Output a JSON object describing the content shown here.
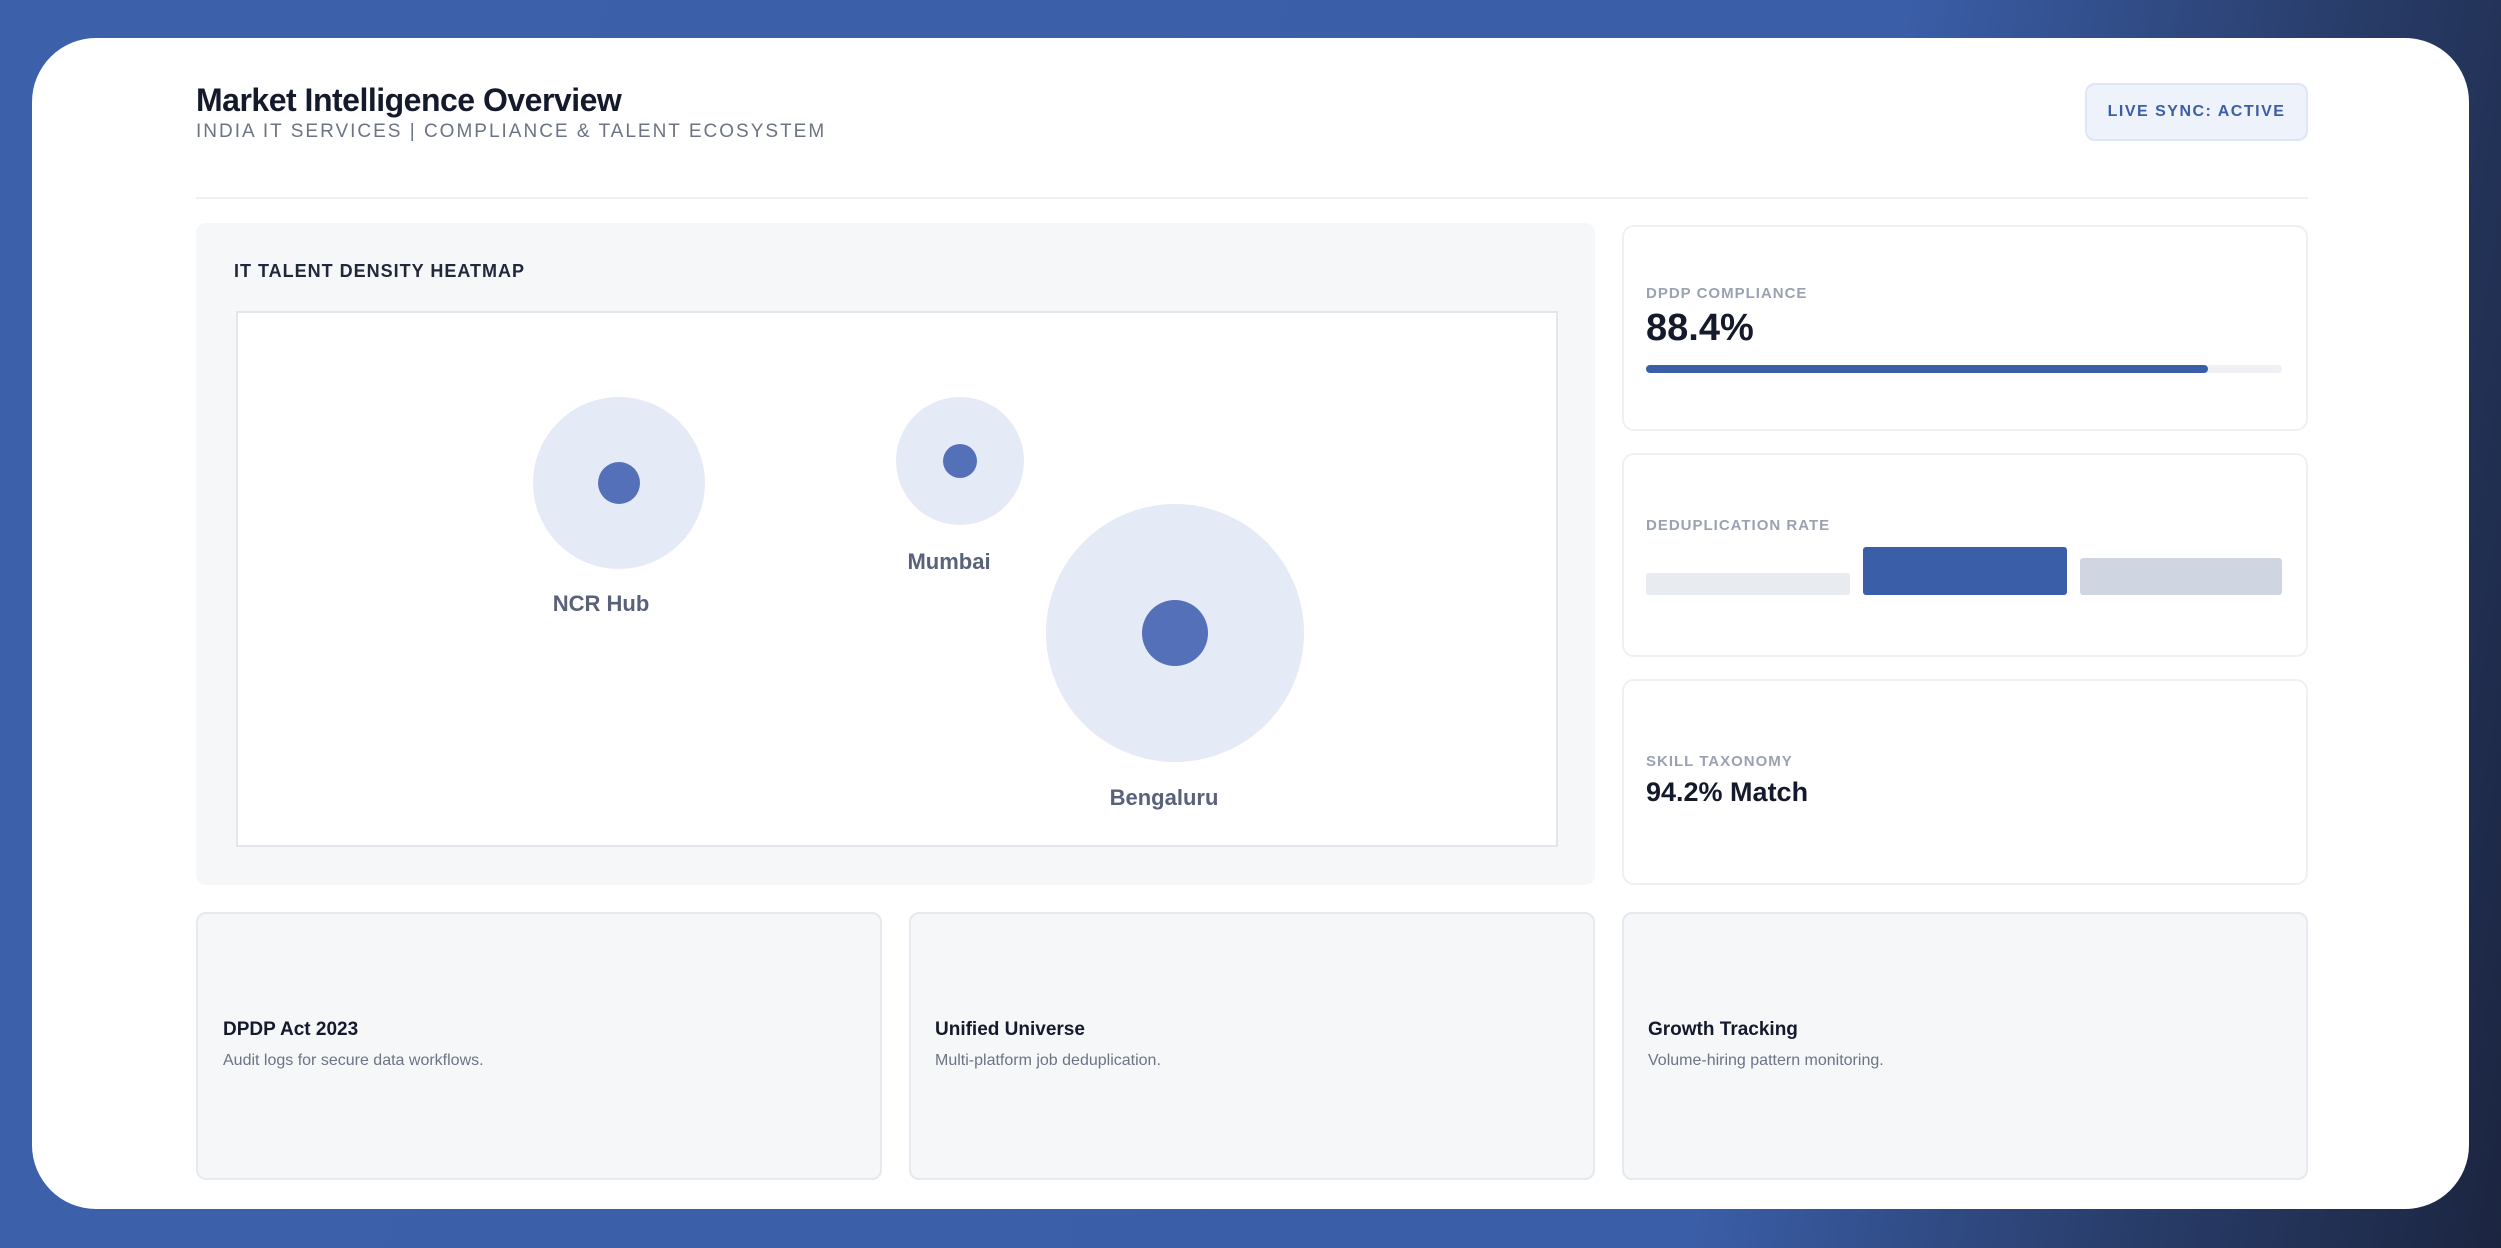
{
  "header": {
    "title": "Market Intelligence Overview",
    "subtitle": "INDIA IT SERVICES | COMPLIANCE & TALENT ECOSYSTEM",
    "badge": "LIVE SYNC: ACTIVE"
  },
  "heatmap": {
    "title": "IT TALENT DENSITY HEATMAP",
    "hubs": [
      "NCR Hub",
      "Mumbai",
      "Bengaluru"
    ]
  },
  "metrics": [
    {
      "label": "DPDP COMPLIANCE",
      "value": "88.4%"
    },
    {
      "label": "DEDUPLICATION RATE"
    },
    {
      "label": "SKILL TAXONOMY",
      "value": "94.2% Match"
    }
  ],
  "features": [
    {
      "title": "DPDP Act 2023",
      "description": "Audit logs for secure data workflows."
    },
    {
      "title": "Unified Universe",
      "description": "Multi-platform job deduplication."
    },
    {
      "title": "Growth Tracking",
      "description": "Volume-hiring pattern monitoring."
    }
  ]
}
